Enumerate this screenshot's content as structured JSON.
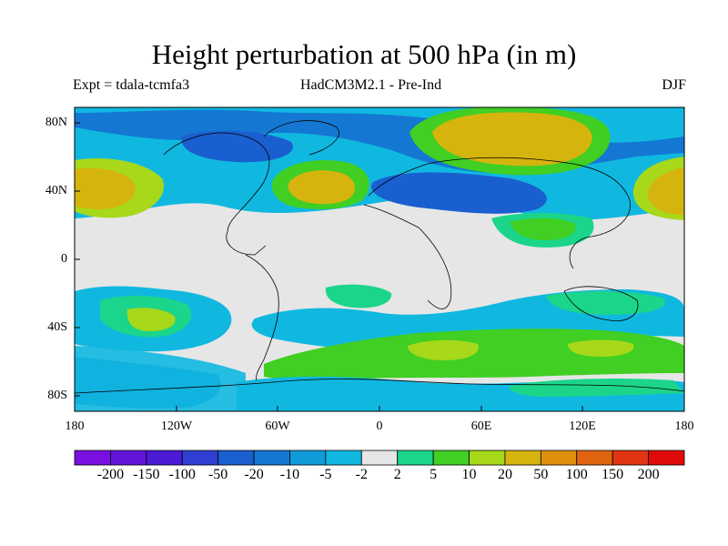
{
  "title": "Height perturbation at 500 hPa (in m)",
  "subtitle_left": "Expt = tdala-tcmfa3",
  "subtitle_center": "HadCM3M2.1 - Pre-Ind",
  "subtitle_right": "DJF",
  "lat_ticks": [
    "80N",
    "40N",
    "0",
    "40S",
    "80S"
  ],
  "lon_ticks": [
    "180",
    "120W",
    "60W",
    "0",
    "60E",
    "120E",
    "180"
  ],
  "colorbar": {
    "labels": [
      "-200",
      "-150",
      "-100",
      "-50",
      "-20",
      "-10",
      "-5",
      "-2",
      "2",
      "5",
      "10",
      "20",
      "50",
      "100",
      "150",
      "200"
    ],
    "colors": [
      "#7a10e0",
      "#6314d9",
      "#4b1bd6",
      "#2f3fd2",
      "#1a5fcf",
      "#1478d2",
      "#0f9bd8",
      "#10b8e0",
      "#e6e6e6",
      "#1bd58a",
      "#40cf22",
      "#a7d81a",
      "#d6b40e",
      "#de900c",
      "#e06410",
      "#e03412",
      "#e00a0a"
    ]
  },
  "map": {
    "projection": "cylindrical equidistant",
    "fields": [
      {
        "name": "north-pacific-high",
        "sign": "positive",
        "level": "20-50"
      },
      {
        "name": "north-atlantic-high",
        "sign": "positive",
        "level": "20-50"
      },
      {
        "name": "eurasia-high",
        "sign": "positive",
        "level": "20-50"
      },
      {
        "name": "west-pacific-high",
        "sign": "positive",
        "level": "20-50"
      },
      {
        "name": "arctic-low",
        "sign": "negative",
        "level": "-5 to -20"
      },
      {
        "name": "mid-latitude-eurasia-low",
        "sign": "negative",
        "level": "-10 to -20"
      },
      {
        "name": "southern-ocean-high-band",
        "sign": "positive",
        "level": "5-20"
      }
    ]
  }
}
